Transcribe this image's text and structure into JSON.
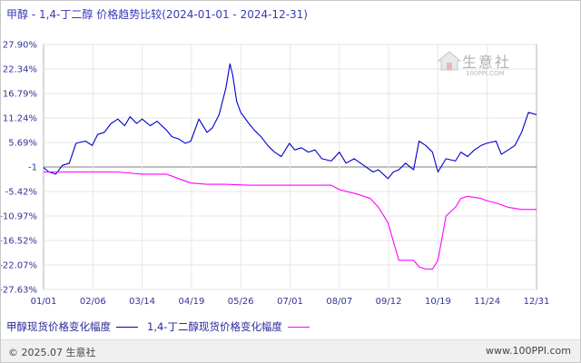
{
  "title": "甲醇 - 1,4-丁二醇 价格趋势比较(2024-01-01 - 2024-12-31)",
  "colors": {
    "series1": "#0000cc",
    "series2": "#ff00ff",
    "zero_line": "#808080",
    "grid": "#e6e6e6",
    "axis": "#333399"
  },
  "watermark": {
    "name": "生意社",
    "url": "100PPI.COM",
    "icon": "house-logo-icon"
  },
  "footer": {
    "copyright": "© 2025.07 生意社",
    "url": "www.100PPI.com"
  },
  "chart_data": {
    "type": "line",
    "title": "甲醇 - 1,4-丁二醇 价格趋势比较(2024-01-01 - 2024-12-31)",
    "xlabel": "",
    "ylabel": "",
    "x_ticks": [
      "01/01",
      "02/06",
      "03/14",
      "04/19",
      "05/26",
      "07/01",
      "08/07",
      "09/12",
      "10/19",
      "11/24",
      "12/31"
    ],
    "y_ticks": [
      "27.90%",
      "22.34%",
      "16.79%",
      "11.24%",
      "5.69%",
      "-1",
      "-5.42%",
      "-10.97%",
      "-16.52%",
      "-22.07%",
      "-27.63%"
    ],
    "ylim": [
      -27.63,
      27.9
    ],
    "xlim": [
      "01/01",
      "12/31"
    ],
    "grid": true,
    "legend_position": "bottom-left",
    "series": [
      {
        "name": "甲醇现货价格变化幅度",
        "x": [
          "01/01",
          "01/05",
          "01/10",
          "01/15",
          "01/20",
          "01/25",
          "02/01",
          "02/06",
          "02/10",
          "02/15",
          "02/20",
          "02/25",
          "03/01",
          "03/05",
          "03/10",
          "03/14",
          "03/20",
          "03/25",
          "04/01",
          "04/05",
          "04/10",
          "04/15",
          "04/19",
          "04/25",
          "05/01",
          "05/05",
          "05/10",
          "05/15",
          "05/18",
          "05/20",
          "05/23",
          "05/26",
          "06/01",
          "06/05",
          "06/10",
          "06/15",
          "06/20",
          "06/25",
          "07/01",
          "07/05",
          "07/10",
          "07/15",
          "07/20",
          "07/25",
          "08/01",
          "08/07",
          "08/12",
          "08/18",
          "08/25",
          "09/01",
          "09/05",
          "09/12",
          "09/16",
          "09/20",
          "09/25",
          "10/01",
          "10/05",
          "10/10",
          "10/15",
          "10/19",
          "10/25",
          "11/01",
          "11/05",
          "11/10",
          "11/15",
          "11/20",
          "11/24",
          "12/01",
          "12/05",
          "12/10",
          "12/15",
          "12/20",
          "12/25",
          "12/31"
        ],
        "values": [
          0.0,
          -1.0,
          -1.5,
          0.5,
          1.0,
          5.5,
          6.0,
          5.0,
          7.5,
          8.0,
          10.0,
          11.0,
          9.5,
          11.5,
          10.0,
          11.0,
          9.5,
          10.5,
          8.5,
          7.0,
          6.5,
          5.5,
          6.0,
          11.0,
          8.0,
          9.0,
          12.0,
          18.0,
          23.5,
          21.0,
          15.0,
          12.5,
          10.0,
          8.5,
          7.0,
          5.0,
          3.5,
          2.5,
          5.5,
          4.0,
          4.5,
          3.5,
          4.0,
          2.0,
          1.5,
          3.5,
          1.0,
          2.0,
          0.5,
          -1.0,
          -0.5,
          -2.5,
          -1.0,
          -0.5,
          1.0,
          -0.5,
          6.0,
          5.0,
          3.5,
          -1.0,
          2.0,
          1.5,
          3.5,
          2.5,
          4.0,
          5.0,
          5.5,
          6.0,
          3.0,
          4.0,
          5.0,
          8.0,
          12.5,
          12.0
        ]
      },
      {
        "name": "1,4-丁二醇现货价格变化幅度",
        "x": [
          "01/01",
          "02/01",
          "02/25",
          "03/14",
          "04/01",
          "04/10",
          "04/19",
          "05/01",
          "05/15",
          "06/01",
          "07/01",
          "08/01",
          "08/07",
          "08/20",
          "08/30",
          "09/05",
          "09/12",
          "09/20",
          "10/01",
          "10/05",
          "10/10",
          "10/15",
          "10/19",
          "10/25",
          "11/01",
          "11/05",
          "11/10",
          "11/20",
          "11/24",
          "12/01",
          "12/10",
          "12/20",
          "12/31"
        ],
        "values": [
          -1.0,
          -1.0,
          -1.0,
          -1.5,
          -1.5,
          -2.5,
          -3.5,
          -3.8,
          -3.8,
          -4.0,
          -4.0,
          -4.0,
          -5.0,
          -6.0,
          -7.0,
          -9.0,
          -12.5,
          -21.0,
          -21.0,
          -22.5,
          -23.0,
          -23.0,
          -21.0,
          -11.0,
          -9.0,
          -7.0,
          -6.5,
          -7.0,
          -7.5,
          -8.0,
          -9.0,
          -9.5,
          -9.5
        ]
      }
    ]
  }
}
